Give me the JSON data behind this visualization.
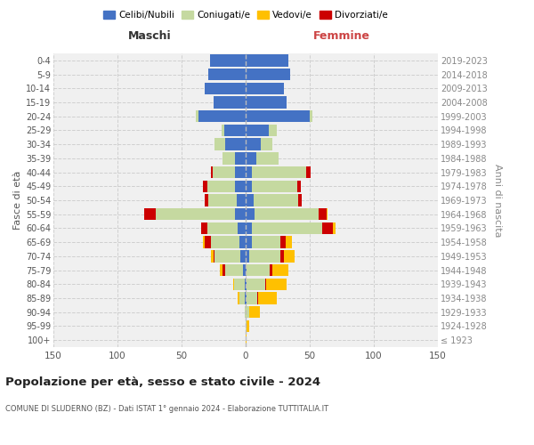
{
  "age_groups": [
    "100+",
    "95-99",
    "90-94",
    "85-89",
    "80-84",
    "75-79",
    "70-74",
    "65-69",
    "60-64",
    "55-59",
    "50-54",
    "45-49",
    "40-44",
    "35-39",
    "30-34",
    "25-29",
    "20-24",
    "15-19",
    "10-14",
    "5-9",
    "0-4"
  ],
  "birth_years": [
    "≤ 1923",
    "1924-1928",
    "1929-1933",
    "1934-1938",
    "1939-1943",
    "1944-1948",
    "1949-1953",
    "1954-1958",
    "1959-1963",
    "1964-1968",
    "1969-1973",
    "1974-1978",
    "1979-1983",
    "1984-1988",
    "1989-1993",
    "1994-1998",
    "1999-2003",
    "2004-2008",
    "2009-2013",
    "2014-2018",
    "2019-2023"
  ],
  "colors": {
    "celibi": "#4472c4",
    "coniugati": "#c5d9a0",
    "vedovi": "#ffc000",
    "divorziati": "#cc0000"
  },
  "maschi": {
    "celibi": [
      0,
      0,
      0,
      1,
      1,
      2,
      4,
      5,
      6,
      8,
      7,
      8,
      8,
      8,
      16,
      17,
      37,
      25,
      32,
      29,
      28
    ],
    "coniugati": [
      0,
      0,
      1,
      4,
      8,
      14,
      20,
      22,
      24,
      62,
      22,
      22,
      18,
      10,
      8,
      2,
      2,
      0,
      0,
      0,
      0
    ],
    "vedovi": [
      0,
      0,
      0,
      1,
      1,
      2,
      2,
      1,
      0,
      0,
      0,
      0,
      0,
      0,
      0,
      0,
      0,
      0,
      0,
      0,
      0
    ],
    "divorziati": [
      0,
      0,
      0,
      0,
      0,
      2,
      1,
      5,
      5,
      9,
      3,
      3,
      1,
      0,
      0,
      0,
      0,
      0,
      0,
      0,
      0
    ]
  },
  "femmine": {
    "celibi": [
      0,
      0,
      0,
      1,
      1,
      1,
      3,
      5,
      5,
      7,
      6,
      5,
      5,
      8,
      12,
      18,
      50,
      32,
      30,
      35,
      33
    ],
    "coniugati": [
      0,
      1,
      3,
      8,
      14,
      18,
      24,
      22,
      55,
      50,
      35,
      35,
      42,
      18,
      9,
      6,
      2,
      0,
      0,
      0,
      0
    ],
    "vedovi": [
      1,
      2,
      8,
      14,
      16,
      12,
      8,
      5,
      2,
      1,
      0,
      0,
      0,
      0,
      0,
      0,
      0,
      0,
      0,
      0,
      0
    ],
    "divorziati": [
      0,
      0,
      0,
      1,
      1,
      2,
      3,
      4,
      8,
      6,
      3,
      3,
      4,
      0,
      0,
      0,
      0,
      0,
      0,
      0,
      0
    ]
  },
  "xlim": 150,
  "title": "Popolazione per età, sesso e stato civile - 2024",
  "subtitle": "COMUNE DI SLUDERNO (BZ) - Dati ISTAT 1° gennaio 2024 - Elaborazione TUTTITALIA.IT",
  "xlabel_left": "Maschi",
  "xlabel_right": "Femmine",
  "ylabel_left": "Fasce di età",
  "ylabel_right": "Anni di nascita",
  "legend_labels": [
    "Celibi/Nubili",
    "Coniugati/e",
    "Vedovi/e",
    "Divorziati/e"
  ],
  "bg_color": "#ffffff",
  "plot_bg": "#f0f0f0",
  "grid_color": "#cccccc"
}
